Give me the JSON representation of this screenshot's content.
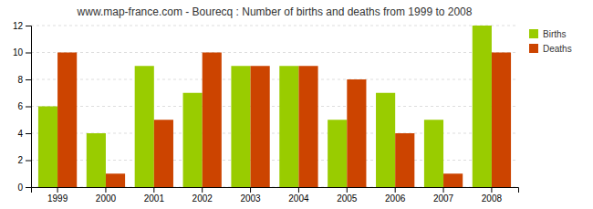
{
  "chart_data": {
    "type": "bar",
    "title": "www.map-france.com - Bourecq : Number of births and deaths from 1999 to 2008",
    "categories": [
      "1999",
      "2000",
      "2001",
      "2002",
      "2003",
      "2004",
      "2005",
      "2006",
      "2007",
      "2008"
    ],
    "series": [
      {
        "name": "Births",
        "color": "#99cc00",
        "values": [
          6,
          4,
          9,
          7,
          9,
          9,
          5,
          7,
          5,
          12
        ]
      },
      {
        "name": "Deaths",
        "color": "#cc4400",
        "values": [
          10,
          1,
          5,
          10,
          9,
          9,
          8,
          4,
          1,
          10
        ]
      }
    ],
    "ylim": [
      0,
      12
    ],
    "yticks": [
      0,
      2,
      4,
      6,
      8,
      10,
      12
    ],
    "grid": true,
    "legend": "top-right"
  }
}
